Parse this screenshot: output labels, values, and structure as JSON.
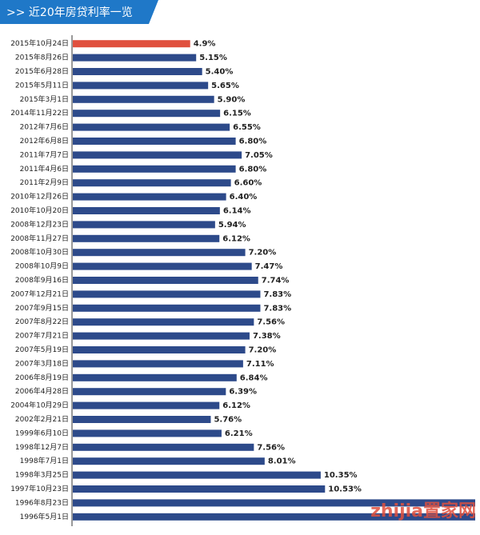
{
  "chart_data": {
    "type": "hbar",
    "title": ">> 近20年房贷利率一览",
    "categories": [
      "2015年10月24日",
      "2015年8月26日",
      "2015年6月28日",
      "2015年5月11日",
      "2015年3月1日",
      "2014年11月22日",
      "2012年7月6日",
      "2012年6月8日",
      "2011年7月7日",
      "2011年4月6日",
      "2011年2月9日",
      "2010年12月26日",
      "2010年10月20日",
      "2008年12月23日",
      "2008年11月27日",
      "2008年10月30日",
      "2008年10月9日",
      "2008年9月16日",
      "2007年12月21日",
      "2007年9月15日",
      "2007年8月22日",
      "2007年7月21日",
      "2007年5月19日",
      "2007年3月18日",
      "2006年8月19日",
      "2006年4月28日",
      "2004年10月29日",
      "2002年2月21日",
      "1999年6月10日",
      "1998年12月7日",
      "1998年7月1日",
      "1998年3月25日",
      "1997年10月23日",
      "1996年8月23日",
      "1996年5月1日"
    ],
    "values": [
      4.9,
      5.15,
      5.4,
      5.65,
      5.9,
      6.15,
      6.55,
      6.8,
      7.05,
      6.8,
      6.6,
      6.4,
      6.14,
      5.94,
      6.12,
      7.2,
      7.47,
      7.74,
      7.83,
      7.83,
      7.56,
      7.38,
      7.2,
      7.11,
      6.84,
      6.39,
      6.12,
      5.76,
      6.21,
      7.56,
      8.01,
      10.35,
      10.53,
      16.8,
      16.8
    ],
    "value_labels": [
      "4.9%",
      "5.15%",
      "5.40%",
      "5.65%",
      "5.90%",
      "6.15%",
      "6.55%",
      "6.80%",
      "7.05%",
      "6.80%",
      "6.60%",
      "6.40%",
      "6.14%",
      "5.94%",
      "6.12%",
      "7.20%",
      "7.47%",
      "7.74%",
      "7.83%",
      "7.83%",
      "7.56%",
      "7.38%",
      "7.20%",
      "7.11%",
      "6.84%",
      "6.39%",
      "6.12%",
      "5.76%",
      "6.21%",
      "7.56%",
      "8.01%",
      "10.35%",
      "10.53%",
      null,
      null
    ],
    "colors": [
      "#e0503e",
      "#2d4a8a",
      "#2d4a8a",
      "#2d4a8a",
      "#2d4a8a",
      "#2d4a8a",
      "#2d4a8a",
      "#2d4a8a",
      "#2d4a8a",
      "#2d4a8a",
      "#2d4a8a",
      "#2d4a8a",
      "#2d4a8a",
      "#2d4a8a",
      "#2d4a8a",
      "#2d4a8a",
      "#2d4a8a",
      "#2d4a8a",
      "#2d4a8a",
      "#2d4a8a",
      "#2d4a8a",
      "#2d4a8a",
      "#2d4a8a",
      "#2d4a8a",
      "#2d4a8a",
      "#2d4a8a",
      "#2d4a8a",
      "#2d4a8a",
      "#2d4a8a",
      "#2d4a8a",
      "#2d4a8a",
      "#2d4a8a",
      "#2d4a8a",
      "#2d4a8a",
      "#2d4a8a"
    ],
    "xlim": [
      0,
      17
    ],
    "watermark": "zhijia置家网"
  }
}
